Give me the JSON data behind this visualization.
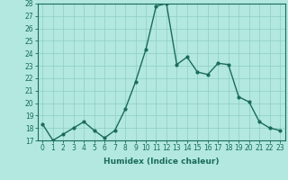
{
  "x": [
    0,
    1,
    2,
    3,
    4,
    5,
    6,
    7,
    8,
    9,
    10,
    11,
    12,
    13,
    14,
    15,
    16,
    17,
    18,
    19,
    20,
    21,
    22,
    23
  ],
  "y": [
    18.3,
    17.0,
    17.5,
    18.0,
    18.5,
    17.8,
    17.2,
    17.8,
    19.5,
    21.7,
    24.3,
    27.8,
    28.0,
    23.1,
    23.7,
    22.5,
    22.3,
    23.2,
    23.1,
    20.5,
    20.1,
    18.5,
    18.0,
    17.8
  ],
  "line_color": "#1a6b5a",
  "marker": "o",
  "marker_size": 2.0,
  "line_width": 1.0,
  "bg_color": "#b2e8e0",
  "grid_color": "#8ecdc5",
  "xlabel": "Humidex (Indice chaleur)",
  "ylim": [
    17,
    28
  ],
  "xlim": [
    -0.5,
    23.5
  ],
  "yticks": [
    17,
    18,
    19,
    20,
    21,
    22,
    23,
    24,
    25,
    26,
    27,
    28
  ],
  "xticks": [
    0,
    1,
    2,
    3,
    4,
    5,
    6,
    7,
    8,
    9,
    10,
    11,
    12,
    13,
    14,
    15,
    16,
    17,
    18,
    19,
    20,
    21,
    22,
    23
  ],
  "tick_fontsize": 5.5,
  "label_fontsize": 6.5
}
